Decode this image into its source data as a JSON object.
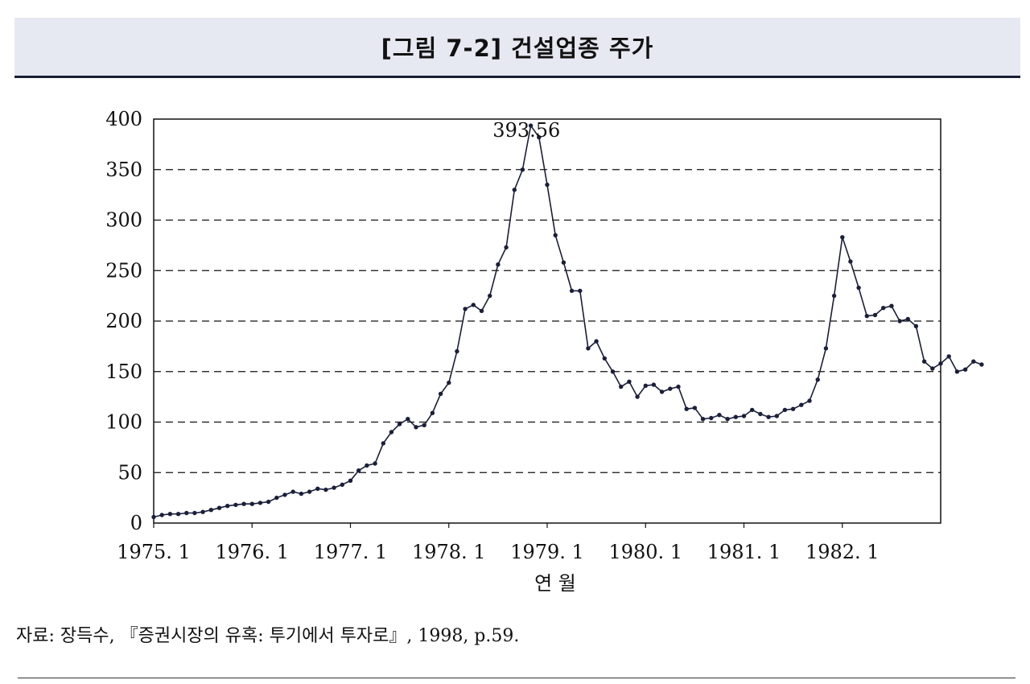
{
  "header": {
    "title": "[그림 7-2]  건설업종 주가"
  },
  "source_note": "자료: 장득수, 『증권시장의 유혹: 투기에서 투자로』, 1998, p.59.",
  "chart_data": {
    "type": "line",
    "title": "[그림 7-2]  건설업종 주가",
    "xlabel": "연    월",
    "ylabel": "",
    "ylim": [
      0,
      400
    ],
    "yticks": [
      0,
      50,
      100,
      150,
      200,
      250,
      300,
      350,
      400
    ],
    "xtick_labels": [
      "1975. 1",
      "1976. 1",
      "1977. 1",
      "1978. 1",
      "1979. 1",
      "1980. 1",
      "1981. 1",
      "1982. 1"
    ],
    "grid": "horizontal-dashed",
    "annotation": {
      "text": "393.56",
      "month_index": 39,
      "value": 393.56
    },
    "line_color": "#1a1f3a",
    "series": [
      {
        "values": [
          6,
          8,
          9,
          9,
          10,
          10,
          11,
          13,
          15,
          17,
          18,
          19,
          19,
          20,
          21,
          25,
          28,
          31,
          29,
          31,
          34,
          33,
          35,
          38,
          42,
          52,
          57,
          59,
          79,
          90,
          98,
          103,
          95,
          97,
          109,
          128,
          139,
          170,
          212,
          216,
          210,
          225,
          256,
          273,
          330,
          350,
          393.56,
          382,
          335,
          285,
          258,
          230,
          230,
          173,
          180,
          163,
          150,
          135,
          140,
          125,
          136,
          137,
          130,
          133,
          135,
          113,
          114,
          103,
          104,
          107,
          103,
          105,
          106,
          112,
          108,
          105,
          106,
          112,
          113,
          117,
          121,
          142,
          173,
          225,
          283,
          259,
          233,
          205,
          206,
          213,
          215,
          200,
          202,
          195,
          160,
          153,
          158,
          165,
          150,
          152,
          160,
          157
        ]
      }
    ]
  }
}
